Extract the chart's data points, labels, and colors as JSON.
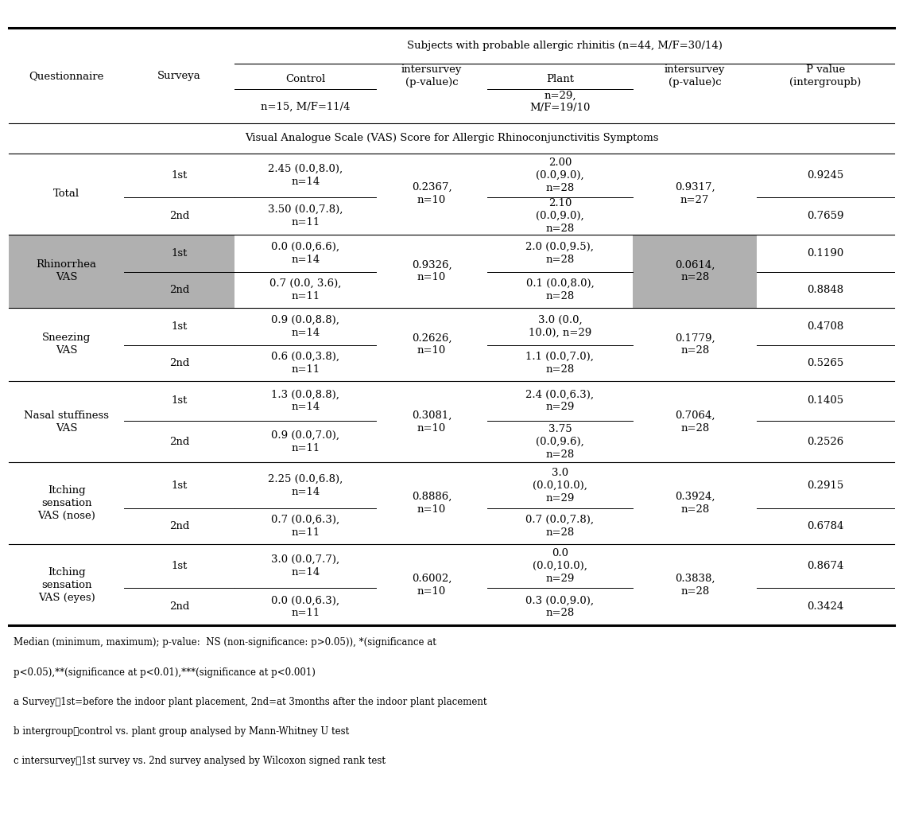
{
  "title_header": "Subjects with probable allergic rhinitis (n=44, M/F=30/14)",
  "section_header": "Visual Analogue Scale (VAS) Score for Allergic Rhinoconjunctivitis Symptoms",
  "rows": [
    {
      "questionnaire": "Total",
      "survey": "1st",
      "control": "2.45 (0.0,8.0),\nn=14",
      "intersurvey": "0.2367,\nn=10",
      "plant": "2.00\n(0.0,9.0),\nn=28",
      "intersurvey2": "0.9317,\nn=27",
      "pvalue": "0.9245",
      "shaded": false,
      "row_type": "1st"
    },
    {
      "questionnaire": "",
      "survey": "2nd",
      "control": "3.50 (0.0,7.8),\nn=11",
      "intersurvey": "",
      "plant": "2.10\n(0.0,9.0),\nn=28",
      "intersurvey2": "",
      "pvalue": "0.7659",
      "shaded": false,
      "row_type": "2nd"
    },
    {
      "questionnaire": "Rhinorrhea\nVAS",
      "survey": "1st",
      "control": "0.0 (0.0,6.6),\nn=14",
      "intersurvey": "0.9326,\nn=10",
      "plant": "2.0 (0.0,9.5),\nn=28",
      "intersurvey2": "0.0614,\nn=28",
      "pvalue": "0.1190",
      "shaded": true,
      "row_type": "1st"
    },
    {
      "questionnaire": "",
      "survey": "2nd",
      "control": "0.7 (0.0, 3.6),\nn=11",
      "intersurvey": "",
      "plant": "0.1 (0.0,8.0),\nn=28",
      "intersurvey2": "",
      "pvalue": "0.8848",
      "shaded": true,
      "row_type": "2nd"
    },
    {
      "questionnaire": "Sneezing\nVAS",
      "survey": "1st",
      "control": "0.9 (0.0,8.8),\nn=14",
      "intersurvey": "0.2626,\nn=10",
      "plant": "3.0 (0.0,\n10.0), n=29",
      "intersurvey2": "0.1779,\nn=28",
      "pvalue": "0.4708",
      "shaded": false,
      "row_type": "1st"
    },
    {
      "questionnaire": "",
      "survey": "2nd",
      "control": "0.6 (0.0,3.8),\nn=11",
      "intersurvey": "",
      "plant": "1.1 (0.0,7.0),\nn=28",
      "intersurvey2": "",
      "pvalue": "0.5265",
      "shaded": false,
      "row_type": "2nd"
    },
    {
      "questionnaire": "Nasal stuffiness\nVAS",
      "survey": "1st",
      "control": "1.3 (0.0,8.8),\nn=14",
      "intersurvey": "0.3081,\nn=10",
      "plant": "2.4 (0.0,6.3),\nn=29",
      "intersurvey2": "0.7064,\nn=28",
      "pvalue": "0.1405",
      "shaded": false,
      "row_type": "1st"
    },
    {
      "questionnaire": "",
      "survey": "2nd",
      "control": "0.9 (0.0,7.0),\nn=11",
      "intersurvey": "",
      "plant": "3.75\n(0.0,9.6),\nn=28",
      "intersurvey2": "",
      "pvalue": "0.2526",
      "shaded": false,
      "row_type": "2nd"
    },
    {
      "questionnaire": "Itching\nsensation\nVAS (nose)",
      "survey": "1st",
      "control": "2.25 (0.0,6.8),\nn=14",
      "intersurvey": "0.8886,\nn=10",
      "plant": "3.0\n(0.0,10.0),\nn=29",
      "intersurvey2": "0.3924,\nn=28",
      "pvalue": "0.2915",
      "shaded": false,
      "row_type": "1st"
    },
    {
      "questionnaire": "",
      "survey": "2nd",
      "control": "0.7 (0.0,6.3),\nn=11",
      "intersurvey": "",
      "plant": "0.7 (0.0,7.8),\nn=28",
      "intersurvey2": "",
      "pvalue": "0.6784",
      "shaded": false,
      "row_type": "2nd"
    },
    {
      "questionnaire": "Itching\nsensation\nVAS (eyes)",
      "survey": "1st",
      "control": "3.0 (0.0,7.7),\nn=14",
      "intersurvey": "0.6002,\nn=10",
      "plant": "0.0\n(0.0,10.0),\nn=29",
      "intersurvey2": "0.3838,\nn=28",
      "pvalue": "0.8674",
      "shaded": false,
      "row_type": "1st"
    },
    {
      "questionnaire": "",
      "survey": "2nd",
      "control": "0.0 (0.0,6.3),\nn=11",
      "intersurvey": "",
      "plant": "0.3 (0.0,9.0),\nn=28",
      "intersurvey2": "",
      "pvalue": "0.3424",
      "shaded": false,
      "row_type": "2nd"
    }
  ],
  "footnotes": [
    "Median (minimum, maximum); p-value:  NS (non-significance: p>0.05)), *(significance at",
    "p<0.05),**(significance at p<0.01),***(significance at p<0.001)",
    "a Survey：1st=before the indoor plant placement, 2nd=at 3months after the indoor plant placement",
    "b intergroup：control vs. plant group analysed by Mann-Whitney U test",
    "c intersurvey：1st survey vs. 2nd survey analysed by Wilcoxon signed rank test"
  ],
  "shade_color": "#b0b0b0",
  "bg_color": "#ffffff",
  "font_size": 9.5
}
